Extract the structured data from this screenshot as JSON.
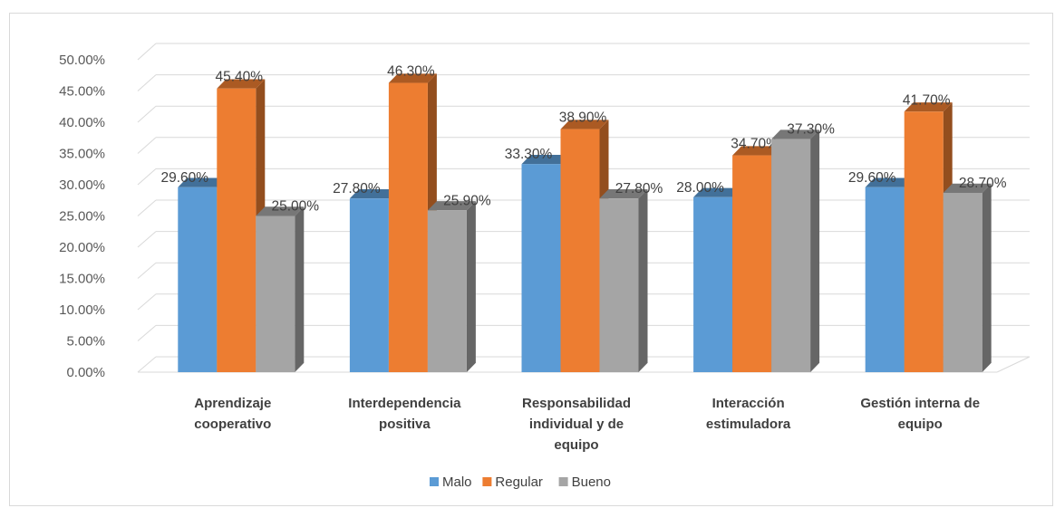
{
  "chart_data": {
    "type": "bar",
    "title": "",
    "xlabel": "",
    "ylabel": "",
    "ylim": [
      0,
      0.5
    ],
    "y_tick_labels": [
      "0.00%",
      "5.00%",
      "10.00%",
      "15.00%",
      "20.00%",
      "25.00%",
      "30.00%",
      "35.00%",
      "40.00%",
      "45.00%",
      "50.00%"
    ],
    "categories": [
      [
        "Aprendizaje",
        "cooperativo"
      ],
      [
        "Interdependencia",
        "positiva"
      ],
      [
        "Responsabilidad",
        "individual y de",
        "equipo"
      ],
      [
        "Interacción",
        "estimuladora"
      ],
      [
        "Gestión interna de",
        "equipo"
      ]
    ],
    "series": [
      {
        "name": "Malo",
        "color": "#5b9bd5",
        "values": [
          0.296,
          0.278,
          0.333,
          0.28,
          0.296
        ],
        "labels": [
          "29.60%",
          "27.80%",
          "33.30%",
          "28.00%",
          "29.60%"
        ]
      },
      {
        "name": "Regular",
        "color": "#ed7d31",
        "values": [
          0.454,
          0.463,
          0.389,
          0.347,
          0.417
        ],
        "labels": [
          "45.40%",
          "46.30%",
          "38.90%",
          "34.70%",
          "41.70%"
        ]
      },
      {
        "name": "Bueno",
        "color": "#a5a5a5",
        "values": [
          0.25,
          0.259,
          0.278,
          0.373,
          0.287
        ],
        "labels": [
          "25.00%",
          "25.90%",
          "27.80%",
          "37.30%",
          "28.70%"
        ]
      }
    ],
    "grid": true,
    "legend_position": "bottom",
    "style": "3d-column"
  }
}
